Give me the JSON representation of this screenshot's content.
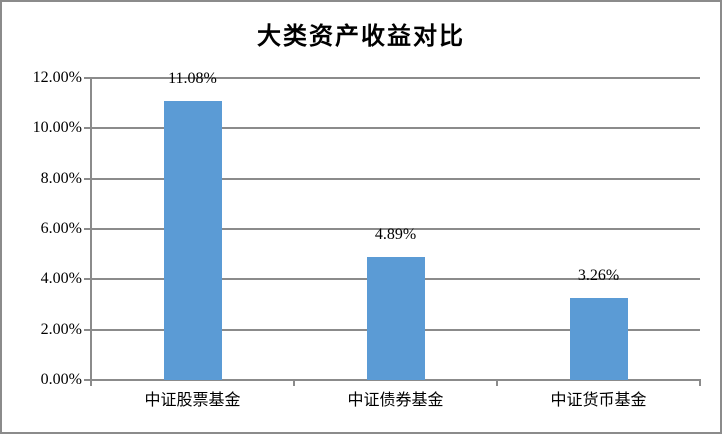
{
  "chart_data": {
    "type": "bar",
    "title": "大类资产收益对比",
    "categories": [
      "中证股票基金",
      "中证债券基金",
      "中证货币基金"
    ],
    "values": [
      11.08,
      4.89,
      3.26
    ],
    "data_labels": [
      "11.08%",
      "4.89%",
      "3.26%"
    ],
    "y_ticks": [
      "12.00%",
      "10.00%",
      "8.00%",
      "6.00%",
      "4.00%",
      "2.00%",
      "0.00%"
    ],
    "y_tick_values": [
      12,
      10,
      8,
      6,
      4,
      2,
      0
    ],
    "ylim": [
      0,
      12
    ],
    "xlabel": "",
    "ylabel": "",
    "grid": "horizontal-only",
    "legend": "none",
    "bar_color": "#5B9BD5",
    "grid_color": "#8B8B8B",
    "axis_color": "#8B8B8B",
    "border_color": "#8B8B8B",
    "text_color": "#000000",
    "background": "#FFFFFF"
  }
}
